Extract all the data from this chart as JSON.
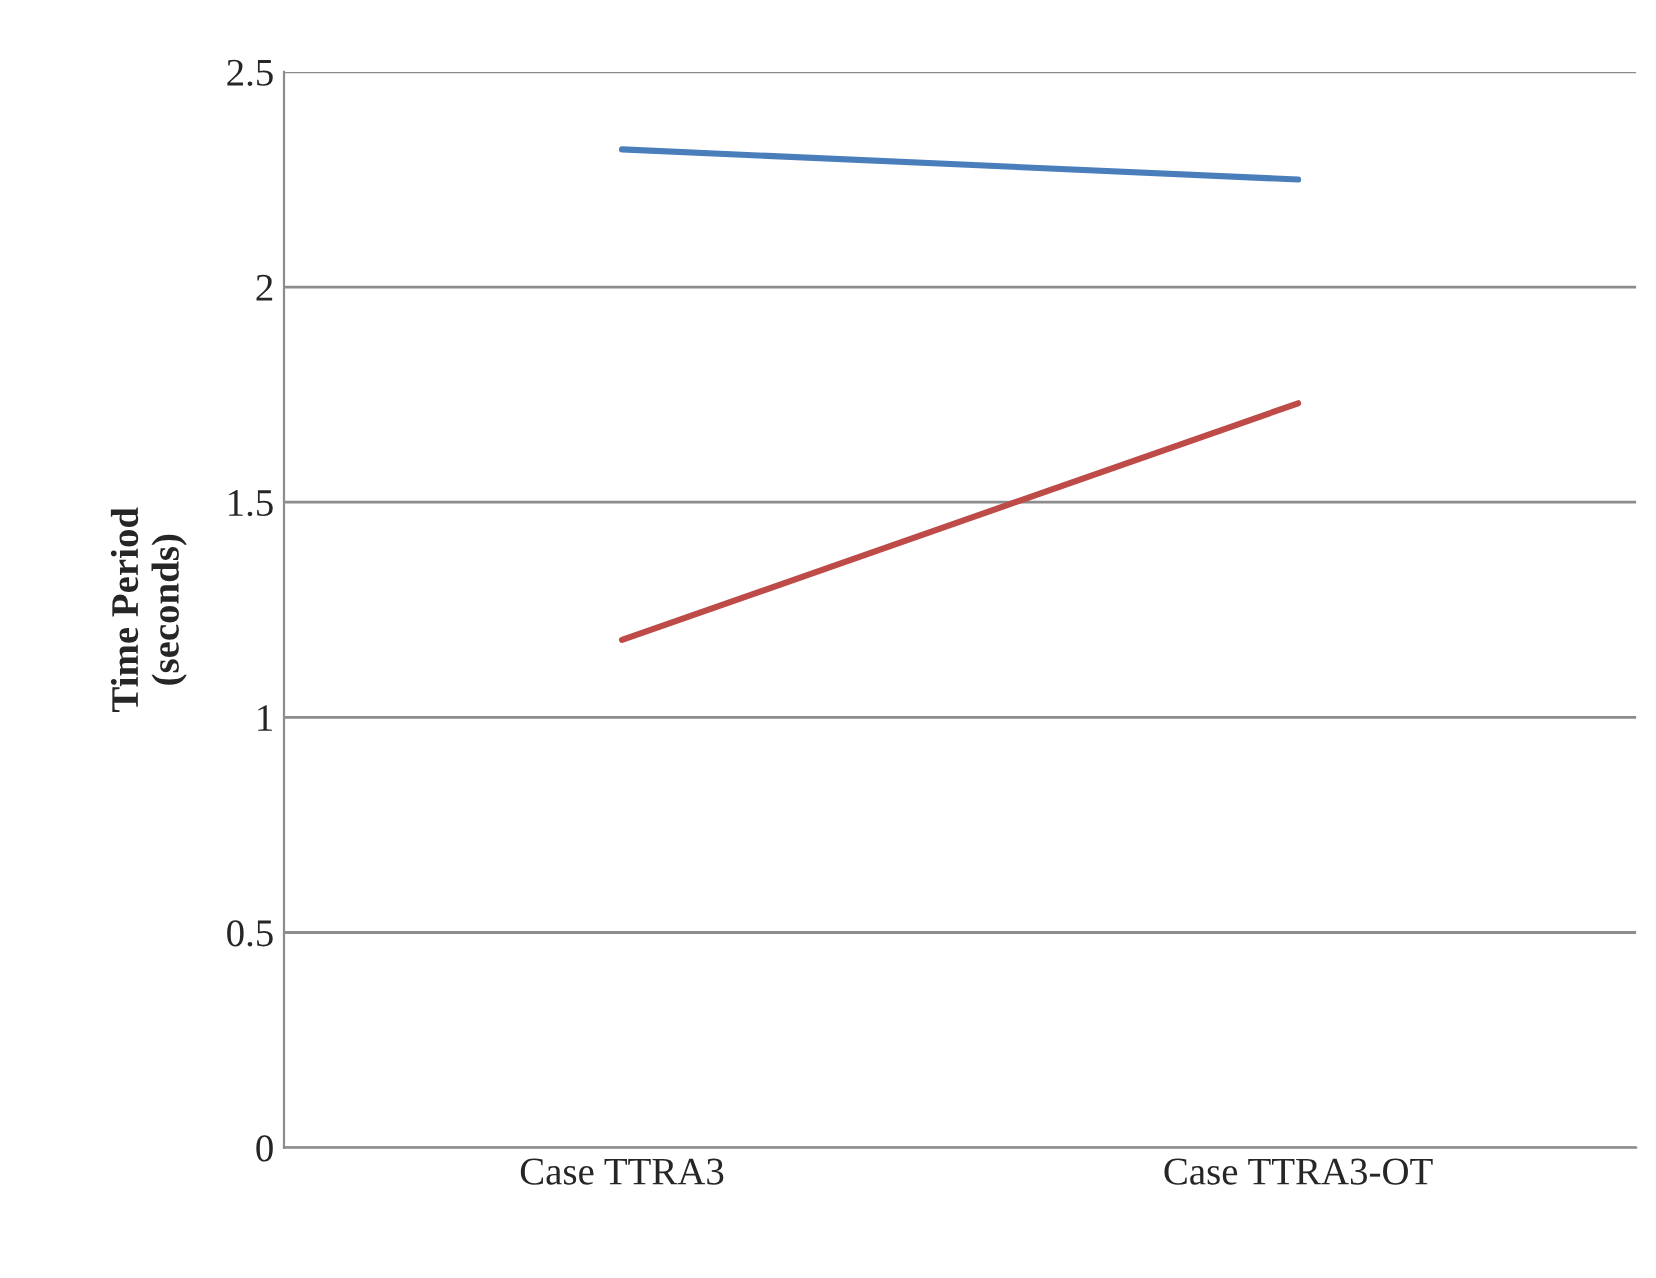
{
  "chart_data": {
    "type": "line",
    "ylabel": "Time Period\n(seconds)",
    "categories": [
      "Case TTRA3",
      "Case TTRA3-OT"
    ],
    "series": [
      {
        "color": "#4a7ebb",
        "values": [
          2.32,
          2.25
        ]
      },
      {
        "color": "#be4b48",
        "values": [
          1.18,
          1.73
        ]
      }
    ],
    "ylim": [
      0,
      2.5
    ],
    "yticks": [
      0,
      0.5,
      1,
      1.5,
      2,
      2.5
    ],
    "grid": "y",
    "marker": "none",
    "line_style": "solid"
  }
}
